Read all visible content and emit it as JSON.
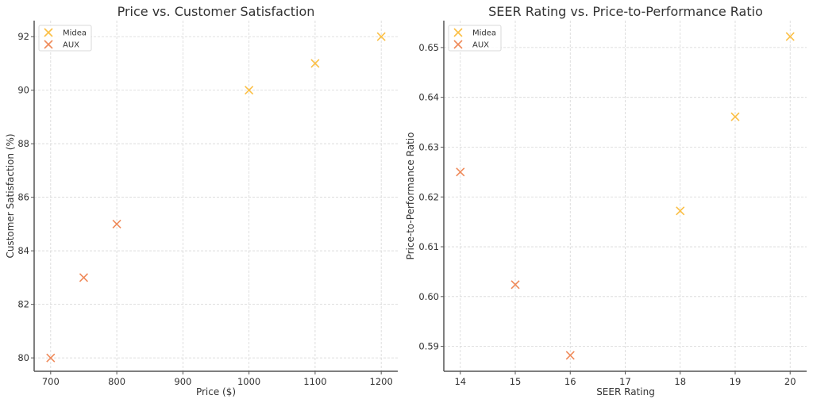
{
  "chart_data": [
    {
      "type": "scatter",
      "title": "Price vs. Customer Satisfaction",
      "xlabel": "Price ($)",
      "ylabel": "Customer Satisfaction (%)",
      "xlim": [
        675,
        1225
      ],
      "ylim": [
        79.5,
        92.6
      ],
      "xticks": [
        700,
        800,
        900,
        1000,
        1100,
        1200
      ],
      "yticks": [
        80,
        82,
        84,
        86,
        88,
        90,
        92
      ],
      "grid": true,
      "legend": "top-left",
      "series": [
        {
          "name": "Midea",
          "color": "#fbbf45",
          "marker": "x",
          "x": [
            1000,
            1100,
            1200
          ],
          "y": [
            90,
            91,
            92
          ]
        },
        {
          "name": "AUX",
          "color": "#ef8a5a",
          "marker": "x",
          "x": [
            700,
            750,
            800
          ],
          "y": [
            80,
            83,
            85
          ]
        }
      ]
    },
    {
      "type": "scatter",
      "title": "SEER Rating vs. Price-to-Performance Ratio",
      "xlabel": "SEER Rating",
      "ylabel": "Price-to-Performance Ratio",
      "xlim": [
        13.7,
        20.3
      ],
      "ylim": [
        0.585,
        0.6554
      ],
      "xticks": [
        14,
        15,
        16,
        17,
        18,
        19,
        20
      ],
      "yticks": [
        0.59,
        0.6,
        0.61,
        0.62,
        0.63,
        0.64,
        0.65
      ],
      "ytick_labels": [
        "0.59",
        "0.60",
        "0.61",
        "0.62",
        "0.63",
        "0.64",
        "0.65"
      ],
      "grid": true,
      "legend": "top-left",
      "series": [
        {
          "name": "Midea",
          "color": "#fbbf45",
          "marker": "x",
          "x": [
            18,
            19,
            20
          ],
          "y": [
            0.6172,
            0.6361,
            0.6522
          ]
        },
        {
          "name": "AUX",
          "color": "#ef8a5a",
          "marker": "x",
          "x": [
            14,
            15,
            16
          ],
          "y": [
            0.625,
            0.6024,
            0.5882
          ]
        }
      ]
    }
  ]
}
